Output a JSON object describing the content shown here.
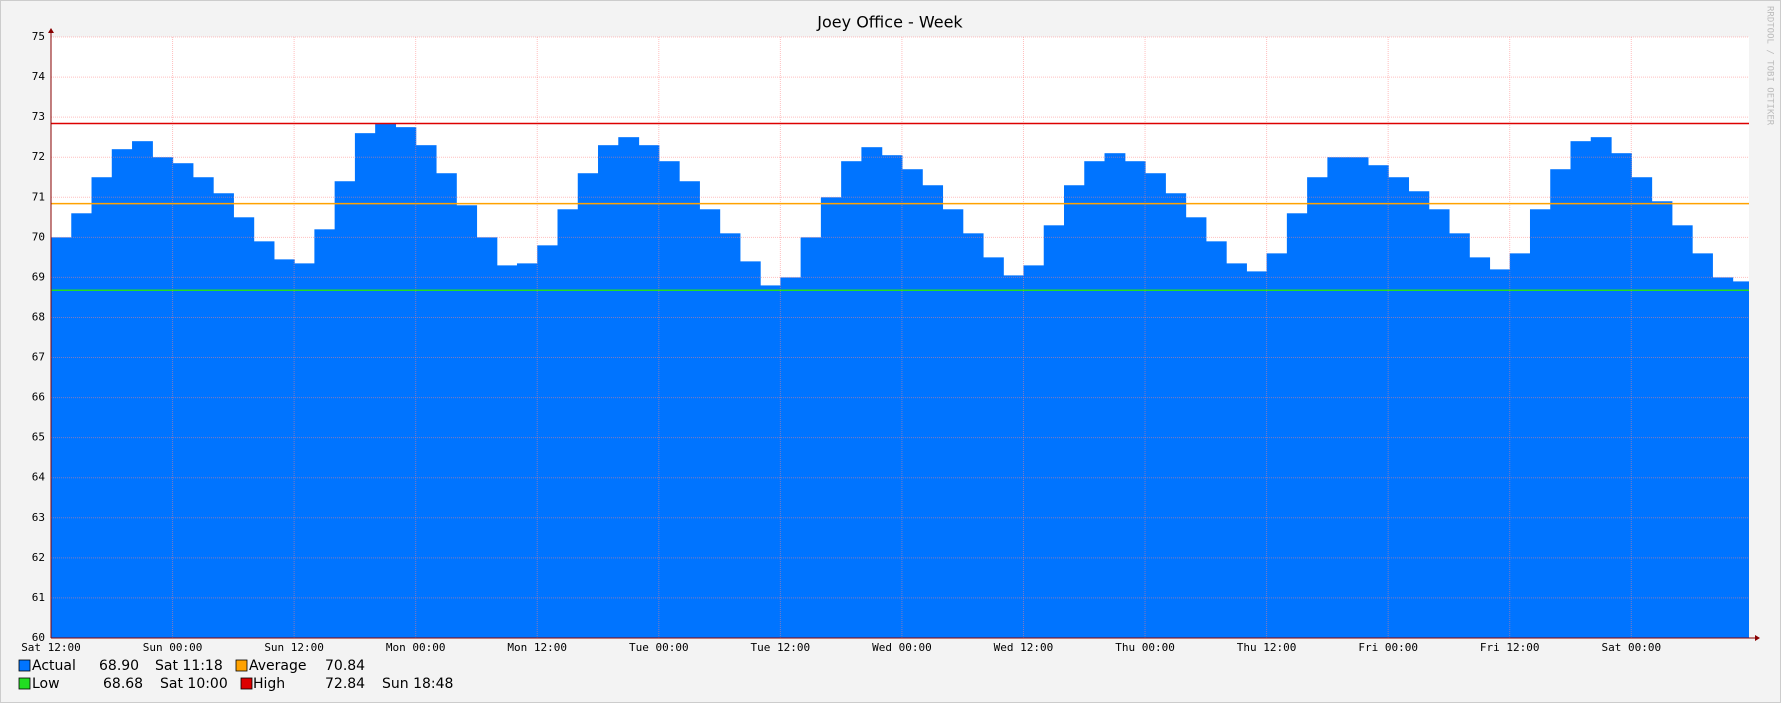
{
  "chart_data": {
    "type": "area",
    "title": "Joey Office - Week",
    "watermark": "RRDTOOL / TOBI OETIKER",
    "categories": [
      "Sat 12:00",
      null,
      null,
      null,
      null,
      null,
      "Sun 00:00",
      null,
      null,
      null,
      null,
      null,
      "Sun 12:00",
      null,
      null,
      null,
      null,
      null,
      "Mon 00:00",
      null,
      null,
      null,
      null,
      null,
      "Mon 12:00",
      null,
      null,
      null,
      null,
      null,
      "Tue 00:00",
      null,
      null,
      null,
      null,
      null,
      "Tue 12:00",
      null,
      null,
      null,
      null,
      null,
      "Wed 00:00",
      null,
      null,
      null,
      null,
      null,
      "Wed 12:00",
      null,
      null,
      null,
      null,
      null,
      "Thu 00:00",
      null,
      null,
      null,
      null,
      null,
      "Thu 12:00",
      null,
      null,
      null,
      null,
      null,
      "Fri 00:00",
      null,
      null,
      null,
      null,
      null,
      "Fri 12:00",
      null,
      null,
      null,
      null,
      null,
      "Sat 00:00",
      null,
      null,
      null,
      null,
      null
    ],
    "series": [
      {
        "name": "Actual",
        "color": "#0074ff",
        "last_label": "68.90",
        "last_time": "Sat 11:18",
        "values": [
          70.0,
          70.6,
          71.5,
          72.2,
          72.4,
          72.0,
          71.85,
          71.5,
          71.1,
          70.5,
          69.9,
          69.45,
          69.35,
          70.2,
          71.4,
          72.6,
          72.85,
          72.75,
          72.3,
          71.6,
          70.8,
          70.0,
          69.3,
          69.35,
          69.8,
          70.7,
          71.6,
          72.3,
          72.5,
          72.3,
          71.9,
          71.4,
          70.7,
          70.1,
          69.4,
          68.8,
          69.0,
          70.0,
          71.0,
          71.9,
          72.25,
          72.05,
          71.7,
          71.3,
          70.7,
          70.1,
          69.5,
          69.05,
          69.3,
          70.3,
          71.3,
          71.9,
          72.1,
          71.9,
          71.6,
          71.1,
          70.5,
          69.9,
          69.35,
          69.15,
          69.6,
          70.6,
          71.5,
          72.0,
          72.0,
          71.8,
          71.5,
          71.15,
          70.7,
          70.1,
          69.5,
          69.2,
          69.6,
          70.7,
          71.7,
          72.4,
          72.5,
          72.1,
          71.5,
          70.9,
          70.3,
          69.6,
          69.0,
          68.9
        ]
      }
    ],
    "reference_lines": [
      {
        "name": "Average",
        "color": "#ffa200",
        "value": 70.84,
        "value_label": "70.84"
      },
      {
        "name": "Low",
        "color": "#22dd22",
        "value": 68.68,
        "value_label": "68.68",
        "time": "Sat 10:00"
      },
      {
        "name": "High",
        "color": "#dd0000",
        "value": 72.84,
        "value_label": "72.84",
        "time": "Sun 18:48"
      }
    ],
    "ylim": [
      60,
      75
    ],
    "yticks": [
      60,
      61,
      62,
      63,
      64,
      65,
      66,
      67,
      68,
      69,
      70,
      71,
      72,
      73,
      74,
      75
    ],
    "grid": true
  }
}
